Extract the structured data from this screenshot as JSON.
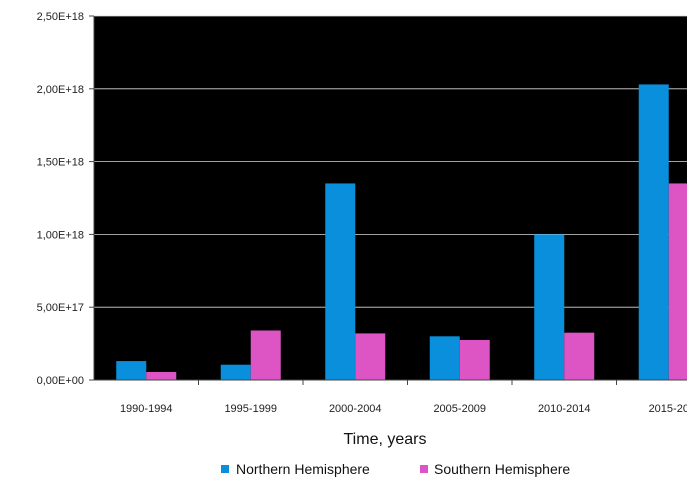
{
  "chart_data": {
    "type": "bar",
    "title": "",
    "xlabel": "Time, years",
    "ylabel": "",
    "categories": [
      "1990-1994",
      "1995-1999",
      "2000-2004",
      "2005-2009",
      "2010-2014",
      "2015-20"
    ],
    "series": [
      {
        "name": "Northern Hemisphere",
        "color": "#0a8fdc",
        "values": [
          1.3e+17,
          1.05e+17,
          1.35e+18,
          3e+17,
          1e+18,
          2.03e+18
        ]
      },
      {
        "name": "Southern Hemisphere",
        "color": "#dd55c4",
        "values": [
          5.5e+16,
          3.4e+17,
          3.2e+17,
          2.75e+17,
          3.25e+17,
          1.35e+18
        ]
      }
    ],
    "ylim": [
      0,
      2.5e+18
    ],
    "yticks": [
      0,
      5e+17,
      1e+18,
      1.5e+18,
      2e+18,
      2.5e+18
    ],
    "ytick_labels": [
      "0,00E+00",
      "5,00E+17",
      "1,00E+18",
      "1,50E+18",
      "2,00E+18",
      "2,50E+18"
    ],
    "plot_background": "#000000",
    "grid": true,
    "legend_position": "bottom"
  }
}
